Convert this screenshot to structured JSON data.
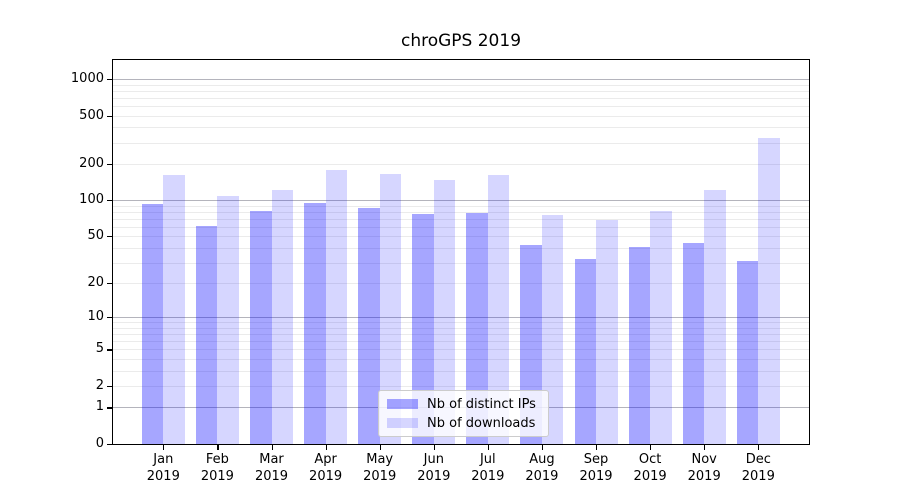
{
  "figure": {
    "title": "chroGPS 2019",
    "background": "#ffffff"
  },
  "chart_data": {
    "type": "bar",
    "title": "chroGPS 2019",
    "x": {
      "categories": [
        "Jan",
        "Feb",
        "Mar",
        "Apr",
        "May",
        "Jun",
        "Jul",
        "Aug",
        "Sep",
        "Oct",
        "Nov",
        "Dec"
      ],
      "year_suffix": "2019"
    },
    "y_axis": {
      "scale": "log10(1+x)",
      "tick_values": [
        0,
        1,
        2,
        5,
        10,
        20,
        50,
        100,
        200,
        500,
        1000
      ],
      "top_value": 1435,
      "major_gridlines": [
        1,
        10,
        100,
        1000
      ],
      "minor_gridline_decades": [
        1,
        10,
        100
      ]
    },
    "series": [
      {
        "name": "Nb of distinct IPs",
        "color": "rgba(0,0,255,0.35)",
        "rendered_hex": "#aaaaf6",
        "values": [
          94,
          61,
          81,
          95,
          86,
          77,
          78,
          42,
          32,
          41,
          44,
          31
        ]
      },
      {
        "name": "Nb of downloads",
        "color": "rgba(0,0,255,0.16)",
        "rendered_hex": "#d8d8fa",
        "values": [
          162,
          109,
          122,
          179,
          166,
          148,
          163,
          76,
          68,
          82,
          122,
          325
        ]
      }
    ],
    "legend": {
      "position": "inside-bottom-center",
      "labels": [
        "Nb of distinct IPs",
        "Nb of downloads"
      ]
    },
    "grid": {
      "visible": true,
      "major_color": "#b4b4bc",
      "minor_color": "#ebebeb"
    }
  }
}
